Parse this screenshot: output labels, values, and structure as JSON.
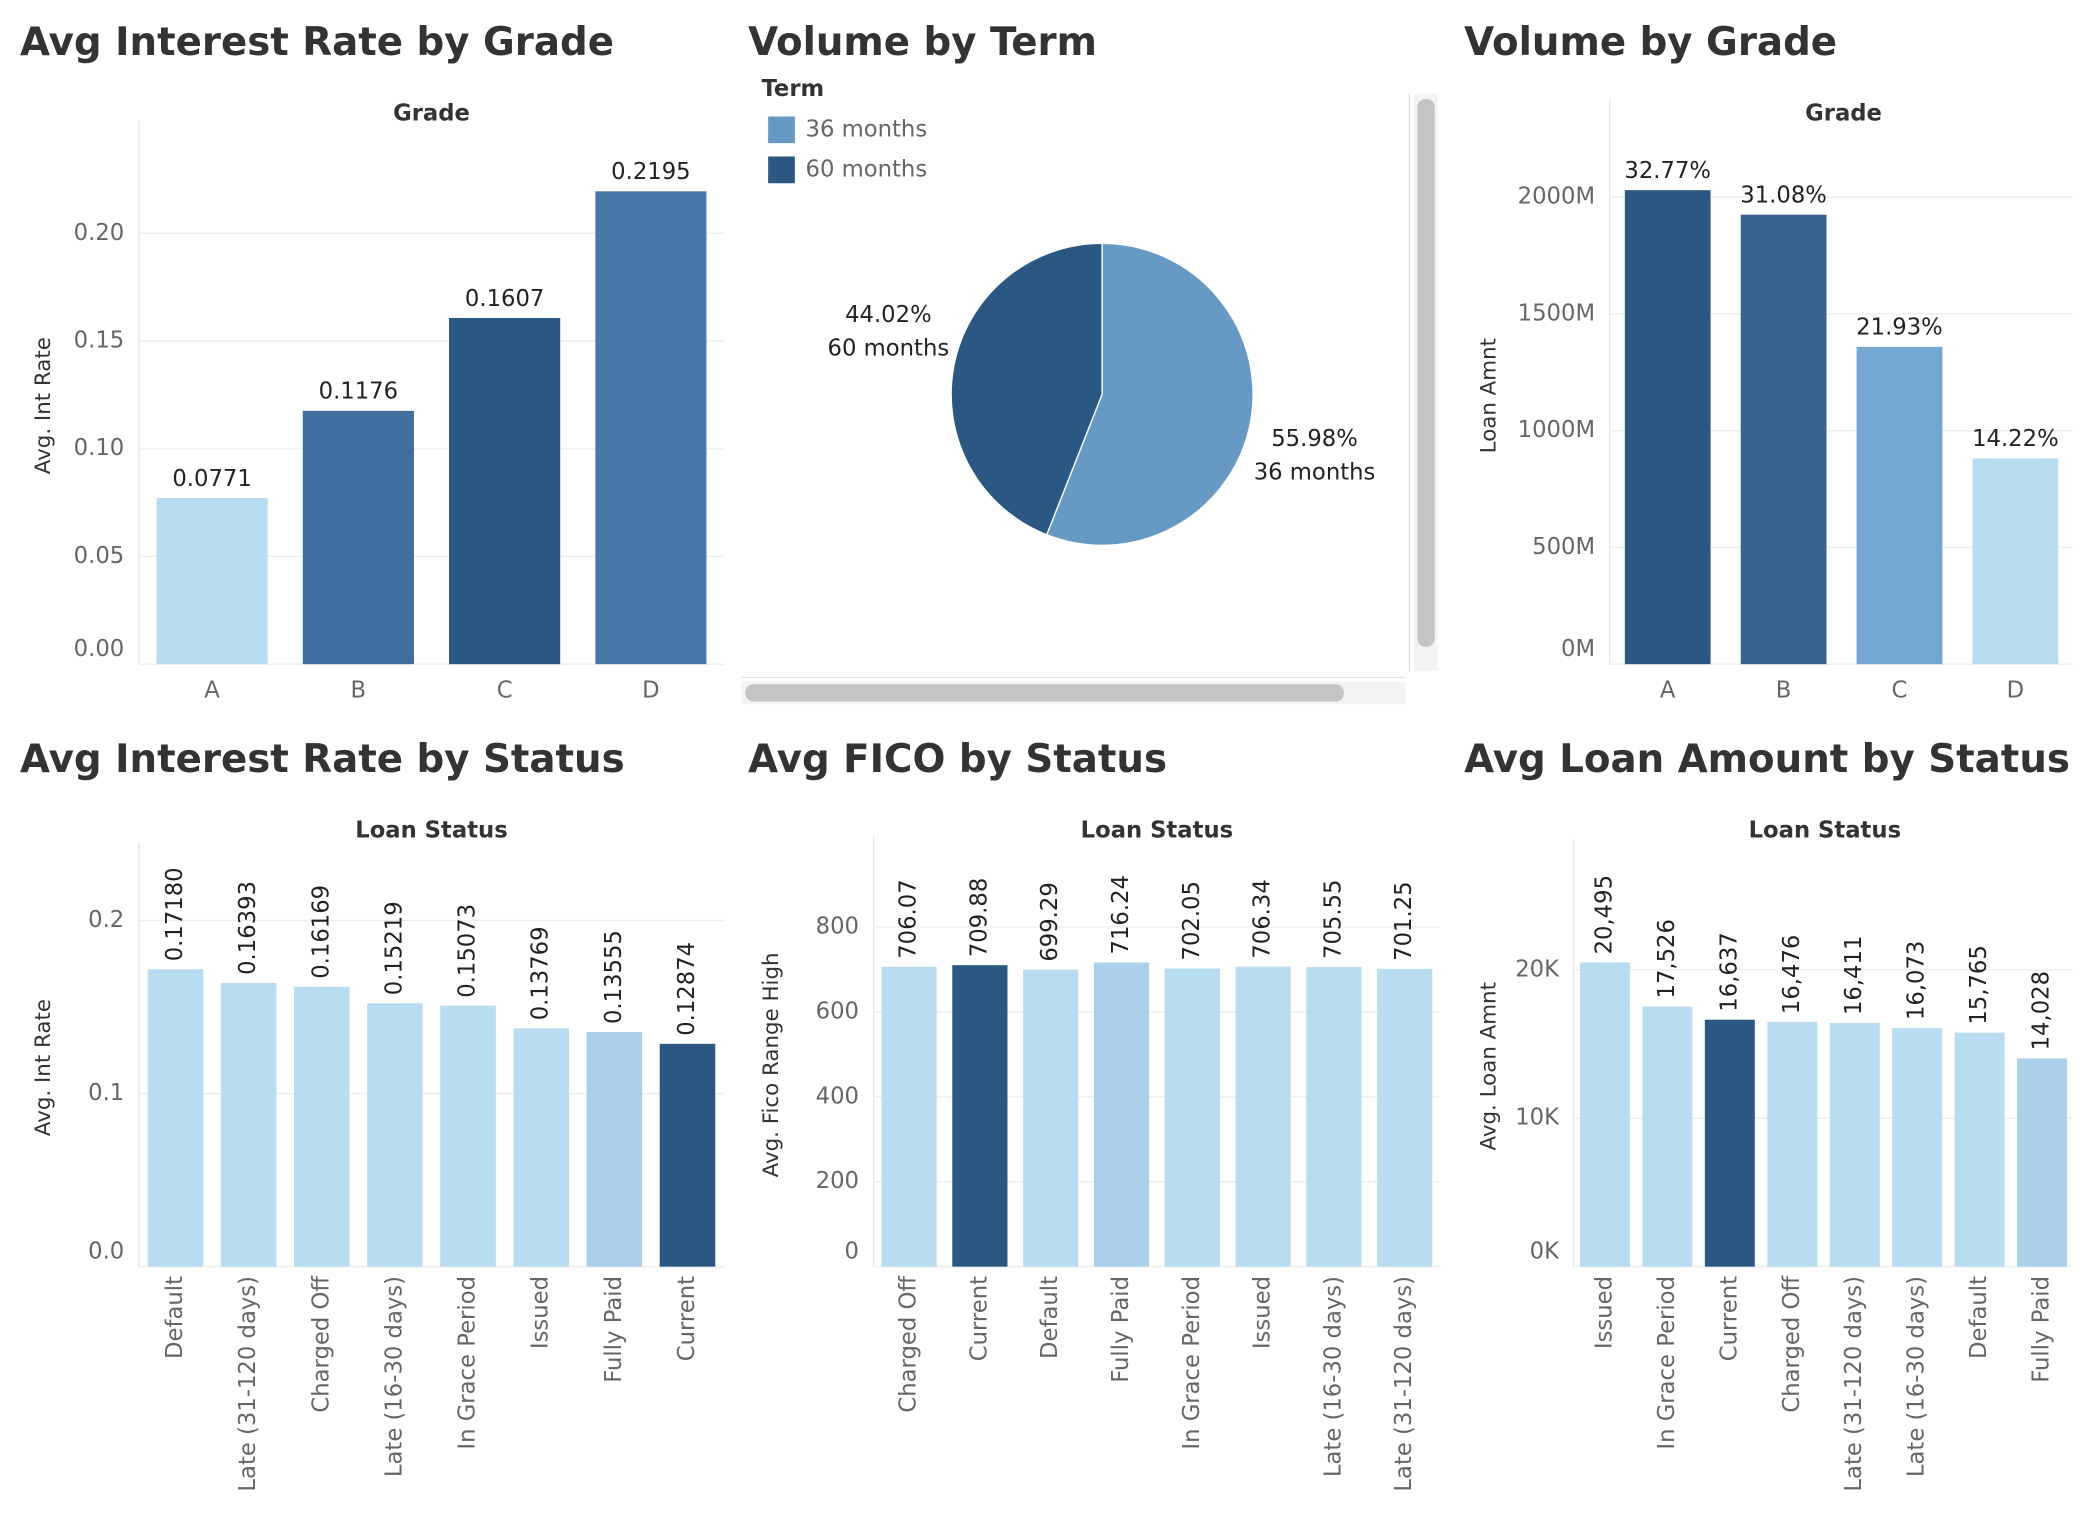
{
  "chart_data": [
    {
      "type": "bar",
      "title": "Avg Interest Rate by Grade",
      "x_header": "Grade",
      "y_label": "Avg. Int Rate",
      "categories": [
        "A",
        "B",
        "C",
        "D"
      ],
      "values": [
        0.0771,
        0.1176,
        0.1607,
        0.2195
      ],
      "colors": [
        "#b9ddf0",
        "#3f6e9f",
        "#2b5783",
        "#4a79a9"
      ],
      "ylim": [
        0,
        0.24
      ],
      "yticks": [
        {
          "value": 0,
          "label": "0.00"
        },
        {
          "value": 0.05,
          "label": "0.05"
        },
        {
          "value": 0.1,
          "label": "0.10"
        },
        {
          "value": 0.15,
          "label": "0.15"
        },
        {
          "value": 0.2,
          "label": "0.20"
        }
      ],
      "grid": true
    },
    {
      "type": "pie",
      "title": "Volume by Term",
      "legend_title": "Term",
      "categories": [
        "36 months",
        "60 months"
      ],
      "values": [
        55.98,
        44.02
      ],
      "value_labels": [
        "55.98%",
        "44.02%"
      ],
      "colors": [
        "#6699c4",
        "#2b5783"
      ]
    },
    {
      "type": "bar",
      "title": "Volume by Grade",
      "x_header": "Grade",
      "y_label": "Loan Amnt",
      "categories": [
        "A",
        "B",
        "C",
        "D"
      ],
      "values": [
        2030000000,
        1925000000,
        1359000000,
        881000000
      ],
      "shares": [
        "32.77%",
        "31.08%",
        "21.93%",
        "14.22%"
      ],
      "colors": [
        "#2b5783",
        "#386391",
        "#73a6d0",
        "#b9ddf0"
      ],
      "ylim": [
        0,
        2300000000
      ],
      "yticks": [
        {
          "value": 0,
          "label": "0M"
        },
        {
          "value": 500000000,
          "label": "500M"
        },
        {
          "value": 1000000000,
          "label": "1000M"
        },
        {
          "value": 1500000000,
          "label": "1500M"
        },
        {
          "value": 2000000000,
          "label": "2000M"
        }
      ],
      "grid": true
    },
    {
      "type": "bar",
      "title": "Avg Interest Rate by Status",
      "x_header": "Loan Status",
      "y_label": "Avg. Int Rate",
      "categories": [
        "Default",
        "Late (31-120 days)",
        "Charged Off",
        "Late (16-30 days)",
        "In Grace Period",
        "Issued",
        "Fully Paid",
        "Current"
      ],
      "values": [
        0.1718,
        0.16393,
        0.16169,
        0.15219,
        0.15073,
        0.13769,
        0.13555,
        0.12874
      ],
      "value_labels": [
        "0.17180",
        "0.16393",
        "0.16169",
        "0.15219",
        "0.15073",
        "0.13769",
        "0.13555",
        "0.12874"
      ],
      "colors": [
        "#b9ddf0",
        "#b9ddf0",
        "#b9ddf0",
        "#b9ddf0",
        "#b9ddf0",
        "#b9ddf0",
        "#abd1ea",
        "#2b5783"
      ],
      "ylim": [
        0,
        0.23
      ],
      "yticks": [
        {
          "value": 0,
          "label": "0.0"
        },
        0.1,
        0.2
      ],
      "grid": true
    },
    {
      "type": "bar",
      "title": "Avg FICO by Status",
      "x_header": "Loan Status",
      "y_label": "Avg. Fico Range High",
      "categories": [
        "Charged Off",
        "Current",
        "Default",
        "Fully Paid",
        "In Grace Period",
        "Issued",
        "Late (16-30 days)",
        "Late (31-120 days)"
      ],
      "values": [
        706.07,
        709.88,
        699.29,
        716.24,
        702.05,
        706.34,
        705.55,
        701.25
      ],
      "colors": [
        "#b9ddf0",
        "#2b5783",
        "#b9ddf0",
        "#abd1ea",
        "#b9ddf0",
        "#b9ddf0",
        "#b9ddf0",
        "#b9ddf0"
      ],
      "ylim": [
        0,
        950
      ],
      "yticks": [
        0,
        200,
        400,
        600,
        800
      ],
      "grid": true
    },
    {
      "type": "bar",
      "title": "Avg Loan Amount by Status",
      "x_header": "Loan Status",
      "y_label": "Avg. Loan Amnt",
      "categories": [
        "Issued",
        "In Grace Period",
        "Current",
        "Charged Off",
        "Late (31-120 days)",
        "Late (16-30 days)",
        "Default",
        "Fully Paid"
      ],
      "values": [
        20495,
        17526,
        16637,
        16476,
        16411,
        16073,
        15765,
        14028
      ],
      "value_labels": [
        "20,495",
        "17,526",
        "16,637",
        "16,476",
        "16,411",
        "16,073",
        "15,765",
        "14,028"
      ],
      "colors": [
        "#b9ddf0",
        "#b9ddf0",
        "#2b5783",
        "#b9ddf0",
        "#b9ddf0",
        "#b9ddf0",
        "#b9ddf0",
        "#abd1ea"
      ],
      "ylim": [
        0,
        27000
      ],
      "yticks": [
        {
          "value": 0,
          "label": "0K"
        },
        {
          "value": 10000,
          "label": "10K"
        },
        {
          "value": 20000,
          "label": "20K"
        }
      ],
      "grid": true
    }
  ]
}
